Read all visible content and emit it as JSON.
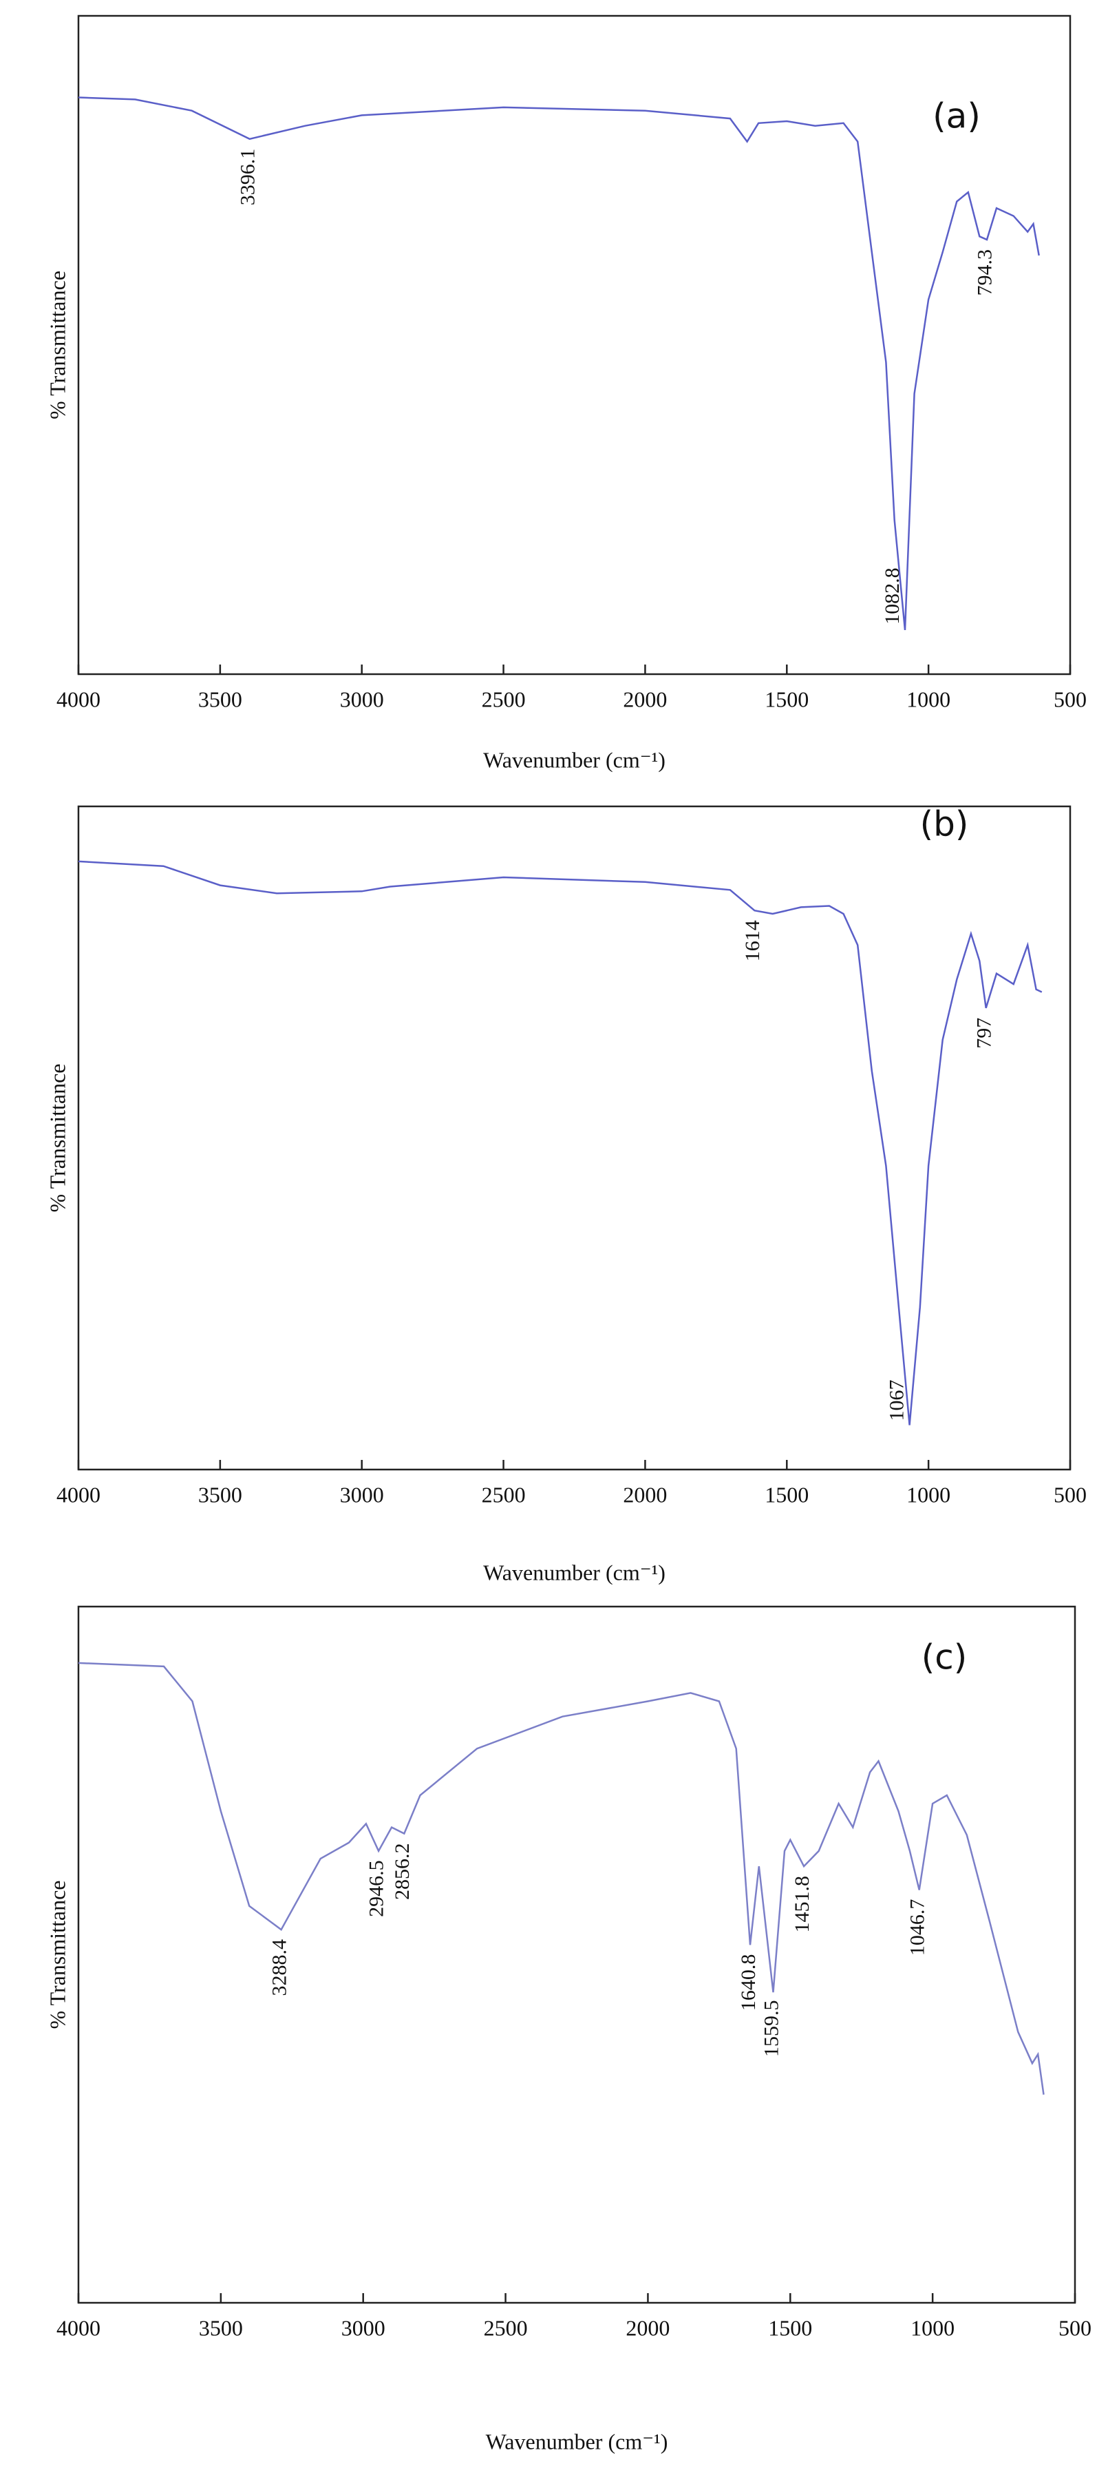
{
  "chart_data": [
    {
      "type": "line",
      "panel_label": "(a)",
      "xlabel": "Wavenumber (cm⁻¹)",
      "ylabel": "% Transmittance",
      "xlim": [
        4000,
        500
      ],
      "xticks": [
        4000,
        3500,
        3000,
        2500,
        2000,
        1500,
        1000,
        500
      ],
      "ylim": [
        0,
        100
      ],
      "color": "#5a5fc8",
      "x": [
        4000,
        3800,
        3600,
        3396,
        3200,
        3000,
        2500,
        2000,
        1700,
        1640,
        1600,
        1500,
        1400,
        1300,
        1250,
        1200,
        1150,
        1120,
        1083,
        1050,
        1000,
        950,
        900,
        860,
        820,
        794,
        760,
        700,
        650,
        630,
        610
      ],
      "values": [
        87.6,
        87.3,
        85.6,
        81.3,
        83.3,
        84.9,
        86.1,
        85.6,
        84.4,
        80.9,
        83.7,
        84,
        83.3,
        83.7,
        80.9,
        64.1,
        47.4,
        23.4,
        6.7,
        42.6,
        56.9,
        64.1,
        71.8,
        73.2,
        66.5,
        66,
        70.8,
        69.6,
        67.2,
        68.4,
        63.6
      ],
      "annotations": [
        {
          "text": "3396.1",
          "x": 3396.1
        },
        {
          "text": "1082.8",
          "x": 1082.8
        },
        {
          "text": "794.3",
          "x": 794.3
        }
      ]
    },
    {
      "type": "line",
      "panel_label": "(b)",
      "xlabel": "Wavenumber (cm⁻¹)",
      "ylabel": "% Transmittance",
      "xlim": [
        4000,
        500
      ],
      "xticks": [
        4000,
        3500,
        3000,
        2500,
        2000,
        1500,
        1000,
        500
      ],
      "ylim": [
        0,
        100
      ],
      "color": "#5a5fc8",
      "x": [
        4000,
        3700,
        3500,
        3300,
        3000,
        2900,
        2500,
        2000,
        1700,
        1614,
        1550,
        1450,
        1350,
        1300,
        1250,
        1200,
        1150,
        1100,
        1067,
        1030,
        1000,
        950,
        900,
        850,
        820,
        797,
        760,
        700,
        650,
        620,
        600
      ],
      "values": [
        91.7,
        91,
        88.1,
        86.9,
        87.2,
        87.9,
        89.3,
        88.6,
        87.4,
        84.3,
        83.8,
        84.8,
        85,
        83.8,
        79.1,
        60.1,
        45.8,
        22.1,
        6.7,
        24.5,
        45.8,
        64.8,
        73.9,
        80.8,
        76.7,
        69.6,
        74.8,
        73.2,
        79.1,
        72.4,
        72
      ],
      "annotations": [
        {
          "text": "1614",
          "x": 1614
        },
        {
          "text": "1067",
          "x": 1067
        },
        {
          "text": "797",
          "x": 797
        }
      ]
    },
    {
      "type": "line",
      "panel_label": "(c)",
      "xlabel": "Wavenumber (cm⁻¹)",
      "ylabel": "% Transmittance",
      "xlim": [
        4000,
        500
      ],
      "xticks": [
        4000,
        3500,
        3000,
        2500,
        2000,
        1500,
        1000,
        500
      ],
      "ylim": [
        0,
        100
      ],
      "color": "#7b7fc8",
      "x": [
        4000,
        3700,
        3600,
        3500,
        3400,
        3288,
        3150,
        3050,
        2990,
        2946,
        2900,
        2856,
        2800,
        2600,
        2300,
        2000,
        1850,
        1750,
        1690,
        1641,
        1610,
        1560,
        1520,
        1500,
        1452,
        1400,
        1330,
        1280,
        1220,
        1190,
        1120,
        1080,
        1047,
        1000,
        950,
        880,
        800,
        700,
        650,
        630,
        610
      ],
      "values": [
        91.9,
        91.4,
        86.4,
        70.6,
        57,
        53.6,
        63.8,
        66.1,
        68.8,
        64.9,
        68.3,
        67.4,
        72.9,
        79.6,
        84.2,
        86.4,
        87.6,
        86.4,
        79.6,
        51.4,
        62.7,
        44.6,
        64.9,
        66.5,
        62.7,
        64.9,
        71.7,
        68.3,
        76.2,
        77.8,
        70.6,
        64.9,
        59.3,
        71.7,
        72.9,
        67.2,
        54.8,
        38.9,
        34.4,
        35.7,
        29.9
      ],
      "annotations": [
        {
          "text": "3288.4",
          "x": 3288.4
        },
        {
          "text": "2946.5",
          "x": 2946.5
        },
        {
          "text": "2856.2",
          "x": 2856.2
        },
        {
          "text": "1640.8",
          "x": 1640.8
        },
        {
          "text": "1559.5",
          "x": 1559.5
        },
        {
          "text": "1451.8",
          "x": 1451.8
        },
        {
          "text": "1046.7",
          "x": 1046.7
        }
      ]
    }
  ]
}
